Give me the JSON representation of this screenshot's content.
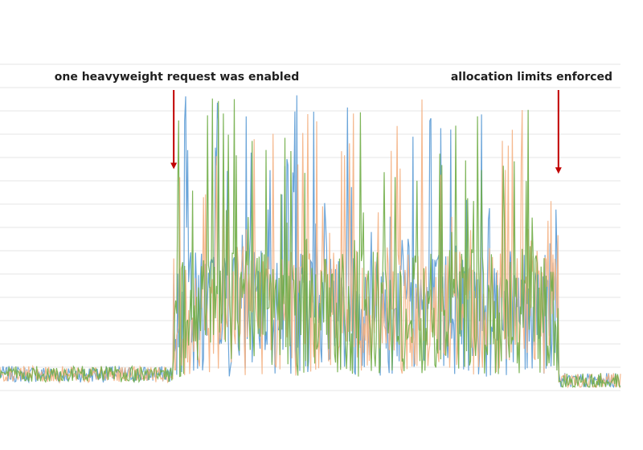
{
  "chart_data": {
    "type": "line",
    "title": "",
    "xlabel": "",
    "ylabel": "",
    "grid": true,
    "x_range": [
      0,
      100
    ],
    "ylim": [
      0,
      14
    ],
    "colors": [
      "#5b9bd5",
      "#f4b183",
      "#70ad47"
    ],
    "series": [
      {
        "color": "#5b9bd5"
      },
      {
        "color": "#f4b183"
      },
      {
        "color": "#70ad47"
      }
    ],
    "phases": [
      {
        "from": 0,
        "to": 28,
        "level": 0.7
      },
      {
        "from": 28,
        "to": 90,
        "level": 2.5
      },
      {
        "from": 90,
        "to": 100,
        "level": 0.4
      }
    ],
    "peak_max": 12.7,
    "annotations": [
      {
        "text": "one heavyweight request was enabled",
        "x": 28,
        "y": 9.5,
        "color": "#c00000"
      },
      {
        "text": "allocation limits enforced",
        "x": 90,
        "y": 9.3,
        "color": "#c00000"
      }
    ]
  }
}
